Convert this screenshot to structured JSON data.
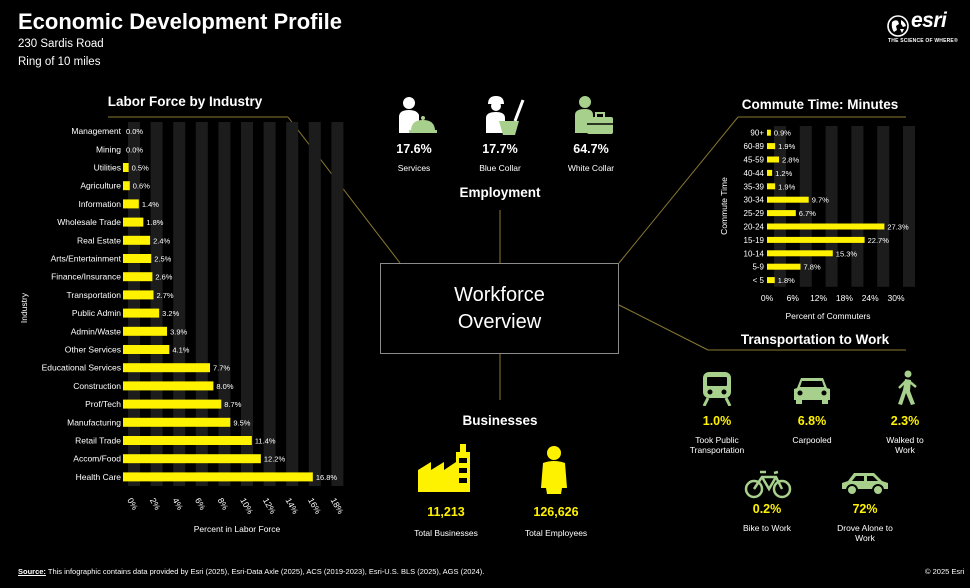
{
  "header": {
    "title": "Economic Development Profile",
    "address": "230 Sardis Road",
    "ring": "Ring of 10 miles",
    "logo_text": "esri",
    "logo_tagline": "THE SCIENCE OF WHERE®"
  },
  "center": {
    "line1": "Workforce",
    "line2": "Overview"
  },
  "labor_chart": {
    "chart_data": {
      "type": "bar",
      "orientation": "horizontal",
      "title": "Labor Force by Industry",
      "xlabel": "Percent in Labor Force",
      "ylabel": "Industry",
      "categories": [
        "Management",
        "Mining",
        "Utilities",
        "Agriculture",
        "Information",
        "Wholesale Trade",
        "Real Estate",
        "Arts/Entertainment",
        "Finance/Insurance",
        "Transportation",
        "Public Admin",
        "Admin/Waste",
        "Other Services",
        "Educational Services",
        "Construction",
        "Prof/Tech",
        "Manufacturing",
        "Retail Trade",
        "Accom/Food",
        "Health Care"
      ],
      "values": [
        0.0,
        0.0,
        0.5,
        0.6,
        1.4,
        1.8,
        2.4,
        2.5,
        2.6,
        2.7,
        3.2,
        3.9,
        4.1,
        7.7,
        8.0,
        8.7,
        9.5,
        11.4,
        12.2,
        16.8
      ],
      "value_labels": [
        "0.0%",
        "0.0%",
        "0.5%",
        "0.6%",
        "1.4%",
        "1.8%",
        "2.4%",
        "2.5%",
        "2.6%",
        "2.7%",
        "3.2%",
        "3.9%",
        "4.1%",
        "7.7%",
        "8.0%",
        "8.7%",
        "9.5%",
        "11.4%",
        "12.2%",
        "16.8%"
      ],
      "xlim": [
        0,
        20
      ],
      "ticks": [
        "0%",
        "2%",
        "4%",
        "6%",
        "8%",
        "10%",
        "12%",
        "14%",
        "16%",
        "18%"
      ],
      "bar_color": "#fff200",
      "track_color": "#1c1c1c"
    }
  },
  "commute_chart": {
    "chart_data": {
      "type": "bar",
      "orientation": "horizontal",
      "title": "Commute Time: Minutes",
      "xlabel": "Percent of Commuters",
      "ylabel": "Commute Time",
      "categories": [
        "90+",
        "60-89",
        "45-59",
        "40-44",
        "35-39",
        "30-34",
        "25-29",
        "20-24",
        "15-19",
        "10-14",
        "5-9",
        "< 5"
      ],
      "values": [
        0.9,
        1.9,
        2.8,
        1.2,
        1.9,
        9.7,
        6.7,
        27.3,
        22.7,
        15.3,
        7.8,
        1.8
      ],
      "value_labels": [
        "0.9%",
        "1.9%",
        "2.8%",
        "1.2%",
        "1.9%",
        "9.7%",
        "6.7%",
        "27.3%",
        "22.7%",
        "15.3%",
        "7.8%",
        "1.8%"
      ],
      "xlim": [
        0,
        36
      ],
      "ticks": [
        "0%",
        "6%",
        "12%",
        "18%",
        "24%",
        "30%"
      ],
      "bar_color": "#fff200",
      "track_color": "#1c1c1c"
    }
  },
  "employment": {
    "title": "Employment",
    "items": [
      {
        "value": "17.6%",
        "label": "Services",
        "icon": "services-worker-icon"
      },
      {
        "value": "17.7%",
        "label": "Blue Collar",
        "icon": "blue-collar-worker-icon"
      },
      {
        "value": "64.7%",
        "label": "White Collar",
        "icon": "white-collar-worker-icon"
      }
    ]
  },
  "businesses": {
    "title": "Businesses",
    "items": [
      {
        "value": "11,213",
        "label": "Total Businesses",
        "icon": "factory-icon"
      },
      {
        "value": "126,626",
        "label": "Total Employees",
        "icon": "person-icon"
      }
    ]
  },
  "transport": {
    "title": "Transportation to Work",
    "items": [
      {
        "value": "1.0%",
        "label": "Took Public Transportation",
        "icon": "train-icon"
      },
      {
        "value": "6.8%",
        "label": "Carpooled",
        "icon": "car-front-icon"
      },
      {
        "value": "2.3%",
        "label": "Walked to Work",
        "icon": "walking-icon"
      },
      {
        "value": "0.2%",
        "label": "Bike to Work",
        "icon": "bicycle-icon"
      },
      {
        "value": "72%",
        "label": "Drove Alone to Work",
        "icon": "car-side-icon"
      }
    ]
  },
  "footer": {
    "source_label": "Source:",
    "source_text": " This infographic contains data provided by Esri (2025), Esri-Data Axle (2025), ACS (2019-2023), Esri-U.S. BLS (2025), AGS (2024).",
    "copyright": "© 2025 Esri"
  },
  "colors": {
    "accent": "#fff200",
    "line": "#8a7a30",
    "green_icon": "#a8d08d",
    "background": "#000000"
  }
}
